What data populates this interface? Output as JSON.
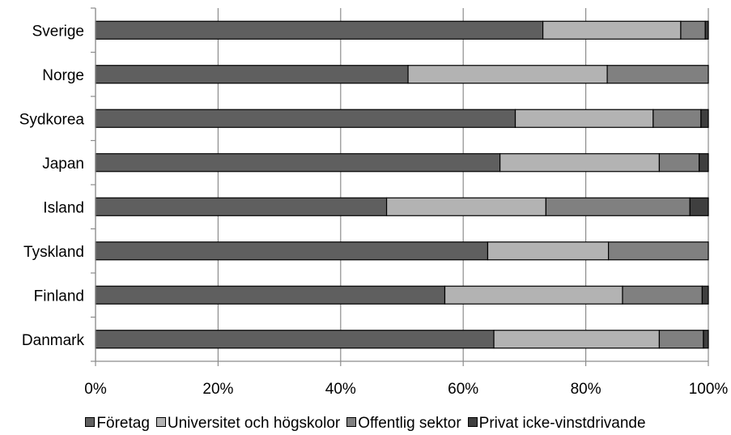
{
  "chart_data": {
    "type": "bar",
    "orientation": "horizontal",
    "stacked": true,
    "percent_stacked": true,
    "categories": [
      "Sverige",
      "Norge",
      "Sydkorea",
      "Japan",
      "Island",
      "Tyskland",
      "Finland",
      "Danmark"
    ],
    "series": [
      {
        "name": "Företag",
        "color": "#5f5f5f",
        "values": [
          73.0,
          51.0,
          68.5,
          66.0,
          47.5,
          64.0,
          57.0,
          65.0
        ]
      },
      {
        "name": "Universitet och högskolor",
        "color": "#b3b3b3",
        "values": [
          22.5,
          32.5,
          22.5,
          26.0,
          26.0,
          19.7,
          29.0,
          27.0
        ]
      },
      {
        "name": "Offentlig sektor",
        "color": "#808080",
        "values": [
          4.0,
          16.5,
          7.8,
          6.5,
          23.5,
          16.3,
          13.0,
          7.2
        ]
      },
      {
        "name": "Privat icke-vinstdrivande",
        "color": "#3f3f3f",
        "values": [
          0.5,
          0.0,
          1.2,
          1.5,
          3.0,
          0.0,
          1.0,
          0.8
        ]
      }
    ],
    "xticks": [
      "0%",
      "20%",
      "40%",
      "60%",
      "80%",
      "100%"
    ],
    "xlim": [
      0,
      100
    ],
    "grid": true,
    "legend_position": "bottom"
  }
}
